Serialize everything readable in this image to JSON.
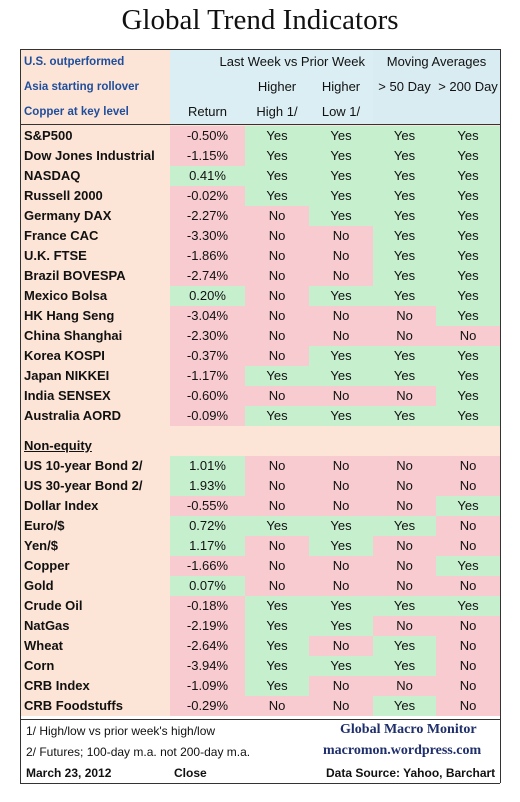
{
  "title": "Global Trend Indicators",
  "header": {
    "left_lines": [
      "U.S. outperformed",
      "Asia starting rollover",
      "Copper at key level"
    ],
    "group1": "Last Week vs Prior Week",
    "group2": "Moving Averages",
    "col_return": "Return",
    "col_hh_1": "Higher",
    "col_hh_2": "High 1/",
    "col_hl_1": "Higher",
    "col_hl_2": "Low 1/",
    "col_50": "> 50 Day",
    "col_200": "> 200 Day"
  },
  "equities": [
    {
      "name": "S&P500",
      "ret": "-0.50%",
      "hh": "Yes",
      "hl": "Yes",
      "m50": "Yes",
      "m200": "Yes"
    },
    {
      "name": "Dow Jones Industrial",
      "ret": "-1.15%",
      "hh": "Yes",
      "hl": "Yes",
      "m50": "Yes",
      "m200": "Yes"
    },
    {
      "name": "NASDAQ",
      "ret": "0.41%",
      "hh": "Yes",
      "hl": "Yes",
      "m50": "Yes",
      "m200": "Yes"
    },
    {
      "name": "Russell 2000",
      "ret": "-0.02%",
      "hh": "Yes",
      "hl": "Yes",
      "m50": "Yes",
      "m200": "Yes"
    },
    {
      "name": "Germany DAX",
      "ret": "-2.27%",
      "hh": "No",
      "hl": "Yes",
      "m50": "Yes",
      "m200": "Yes"
    },
    {
      "name": "France CAC",
      "ret": "-3.30%",
      "hh": "No",
      "hl": "No",
      "m50": "Yes",
      "m200": "Yes"
    },
    {
      "name": "U.K. FTSE",
      "ret": "-1.86%",
      "hh": "No",
      "hl": "No",
      "m50": "Yes",
      "m200": "Yes"
    },
    {
      "name": "Brazil BOVESPA",
      "ret": "-2.74%",
      "hh": "No",
      "hl": "No",
      "m50": "Yes",
      "m200": "Yes"
    },
    {
      "name": "Mexico Bolsa",
      "ret": "0.20%",
      "hh": "No",
      "hl": "Yes",
      "m50": "Yes",
      "m200": "Yes"
    },
    {
      "name": "HK  Hang Seng",
      "ret": "-3.04%",
      "hh": "No",
      "hl": "No",
      "m50": "No",
      "m200": "Yes"
    },
    {
      "name": "China Shanghai",
      "ret": "-2.30%",
      "hh": "No",
      "hl": "No",
      "m50": "No",
      "m200": "No"
    },
    {
      "name": "Korea KOSPI",
      "ret": "-0.37%",
      "hh": "No",
      "hl": "Yes",
      "m50": "Yes",
      "m200": "Yes"
    },
    {
      "name": "Japan NIKKEI",
      "ret": "-1.17%",
      "hh": "Yes",
      "hl": "Yes",
      "m50": "Yes",
      "m200": "Yes"
    },
    {
      "name": "India SENSEX",
      "ret": "-0.60%",
      "hh": "No",
      "hl": "No",
      "m50": "No",
      "m200": "Yes"
    },
    {
      "name": "Australia AORD",
      "ret": "-0.09%",
      "hh": "Yes",
      "hl": "Yes",
      "m50": "Yes",
      "m200": "Yes"
    }
  ],
  "non_equity_label": "Non-equity",
  "non_equity": [
    {
      "name": "US 10-year Bond 2/",
      "ret": "1.01%",
      "hh": "No",
      "hl": "No",
      "m50": "No",
      "m200": "No"
    },
    {
      "name": "US 30-year Bond 2/",
      "ret": "1.93%",
      "hh": "No",
      "hl": "No",
      "m50": "No",
      "m200": "No"
    },
    {
      "name": "Dollar Index",
      "ret": "-0.55%",
      "hh": "No",
      "hl": "No",
      "m50": "No",
      "m200": "Yes"
    },
    {
      "name": "Euro/$",
      "ret": "0.72%",
      "hh": "Yes",
      "hl": "Yes",
      "m50": "Yes",
      "m200": "No"
    },
    {
      "name": "Yen/$",
      "ret": "1.17%",
      "hh": "No",
      "hl": "Yes",
      "m50": "No",
      "m200": "No"
    },
    {
      "name": "Copper",
      "ret": "-1.66%",
      "hh": "No",
      "hl": "No",
      "m50": "No",
      "m200": "Yes"
    },
    {
      "name": "Gold",
      "ret": "0.07%",
      "hh": "No",
      "hl": "No",
      "m50": "No",
      "m200": "No"
    },
    {
      "name": "Crude Oil",
      "ret": "-0.18%",
      "hh": "Yes",
      "hl": "Yes",
      "m50": "Yes",
      "m200": "Yes"
    },
    {
      "name": "NatGas",
      "ret": "-2.19%",
      "hh": "Yes",
      "hl": "Yes",
      "m50": "No",
      "m200": "No"
    },
    {
      "name": "Wheat",
      "ret": "-2.64%",
      "hh": "Yes",
      "hl": "No",
      "m50": "Yes",
      "m200": "No"
    },
    {
      "name": "Corn",
      "ret": "-3.94%",
      "hh": "Yes",
      "hl": "Yes",
      "m50": "Yes",
      "m200": "No"
    },
    {
      "name": "CRB Index",
      "ret": "-1.09%",
      "hh": "Yes",
      "hl": "No",
      "m50": "No",
      "m200": "No"
    },
    {
      "name": "CRB Foodstuffs",
      "ret": "-0.29%",
      "hh": "No",
      "hl": "No",
      "m50": "Yes",
      "m200": "No"
    }
  ],
  "footer": {
    "note1": "1/  High/low vs prior week's high/low",
    "note2": "2/  Futures;  100-day m.a. not 200-day m.a.",
    "brand": "Global Macro Monitor",
    "site": "macromon.wordpress.com",
    "date": "March 23, 2012",
    "close": "Close",
    "source": "Data Source: Yahoo, Barchart"
  },
  "colors": {
    "positive": "#c6efce",
    "negative": "#f8cbd0",
    "label_bg": "#fce4d6",
    "header_bg": "#dbeef4",
    "header_text": "#1f4e9c"
  }
}
